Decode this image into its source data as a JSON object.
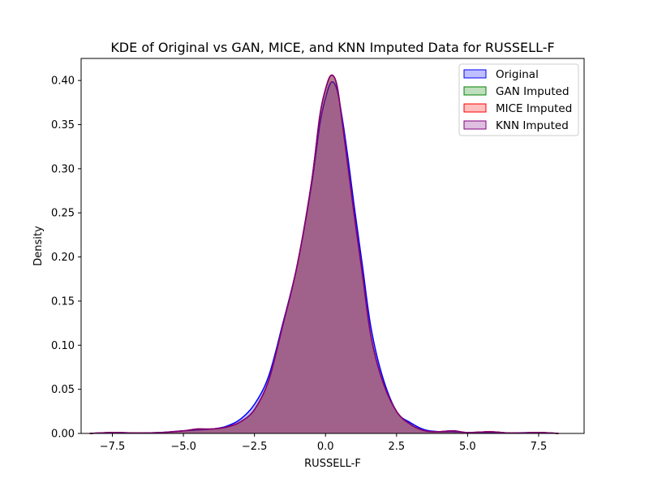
{
  "chart_data": {
    "type": "area",
    "title": "KDE of Original vs GAN, MICE, and KNN Imputed Data for RUSSELL-F",
    "xlabel": "RUSSELL-F",
    "ylabel": "Density",
    "xlim": [
      -8.6,
      9.1
    ],
    "ylim": [
      0,
      0.425
    ],
    "x_ticks": [
      -7.5,
      -5.0,
      -2.5,
      0.0,
      2.5,
      5.0,
      7.5
    ],
    "x_tick_labels": [
      "−7.5",
      "−5.0",
      "−2.5",
      "0.0",
      "2.5",
      "5.0",
      "7.5"
    ],
    "y_ticks": [
      0.0,
      0.05,
      0.1,
      0.15,
      0.2,
      0.25,
      0.3,
      0.35,
      0.4
    ],
    "y_tick_labels": [
      "0.00",
      "0.05",
      "0.10",
      "0.15",
      "0.20",
      "0.25",
      "0.30",
      "0.35",
      "0.40"
    ],
    "grid": false,
    "legend_position": "top-right",
    "series": [
      {
        "name": "Original",
        "color": "#0000ff",
        "fill_alpha": 0.25,
        "points": [
          [
            -8.3,
            0.0
          ],
          [
            -7.5,
            0.001
          ],
          [
            -6.5,
            0.0005
          ],
          [
            -5.8,
            0.001
          ],
          [
            -5.0,
            0.003
          ],
          [
            -4.5,
            0.004
          ],
          [
            -4.0,
            0.005
          ],
          [
            -3.5,
            0.008
          ],
          [
            -3.0,
            0.016
          ],
          [
            -2.5,
            0.033
          ],
          [
            -2.0,
            0.065
          ],
          [
            -1.5,
            0.125
          ],
          [
            -1.0,
            0.19
          ],
          [
            -0.5,
            0.28
          ],
          [
            -0.2,
            0.35
          ],
          [
            0.0,
            0.38
          ],
          [
            0.2,
            0.398
          ],
          [
            0.4,
            0.39
          ],
          [
            0.6,
            0.355
          ],
          [
            0.8,
            0.31
          ],
          [
            1.0,
            0.26
          ],
          [
            1.3,
            0.19
          ],
          [
            1.6,
            0.12
          ],
          [
            2.0,
            0.065
          ],
          [
            2.5,
            0.025
          ],
          [
            3.0,
            0.012
          ],
          [
            3.5,
            0.004
          ],
          [
            4.0,
            0.002
          ],
          [
            4.5,
            0.002
          ],
          [
            5.0,
            0.001
          ],
          [
            5.8,
            0.001
          ],
          [
            6.5,
            0.0005
          ],
          [
            7.5,
            0.001
          ],
          [
            8.2,
            0.0
          ]
        ]
      },
      {
        "name": "GAN Imputed",
        "color": "#008000",
        "fill_alpha": 0.25,
        "points": [
          [
            -8.3,
            0.0
          ],
          [
            -7.5,
            0.001
          ],
          [
            -6.5,
            0.0005
          ],
          [
            -5.8,
            0.001
          ],
          [
            -5.0,
            0.003
          ],
          [
            -4.5,
            0.005
          ],
          [
            -4.0,
            0.005
          ],
          [
            -3.5,
            0.007
          ],
          [
            -3.0,
            0.013
          ],
          [
            -2.5,
            0.027
          ],
          [
            -2.0,
            0.06
          ],
          [
            -1.5,
            0.123
          ],
          [
            -1.0,
            0.19
          ],
          [
            -0.5,
            0.283
          ],
          [
            -0.2,
            0.36
          ],
          [
            0.0,
            0.39
          ],
          [
            0.2,
            0.406
          ],
          [
            0.4,
            0.395
          ],
          [
            0.6,
            0.35
          ],
          [
            0.8,
            0.3
          ],
          [
            1.0,
            0.25
          ],
          [
            1.3,
            0.18
          ],
          [
            1.6,
            0.11
          ],
          [
            2.0,
            0.06
          ],
          [
            2.5,
            0.025
          ],
          [
            3.0,
            0.01
          ],
          [
            3.5,
            0.003
          ],
          [
            4.0,
            0.002
          ],
          [
            4.5,
            0.003
          ],
          [
            5.0,
            0.001
          ],
          [
            5.8,
            0.002
          ],
          [
            6.5,
            0.0005
          ],
          [
            7.5,
            0.001
          ],
          [
            8.2,
            0.0
          ]
        ]
      },
      {
        "name": "MICE Imputed",
        "color": "#ff0000",
        "fill_alpha": 0.25,
        "points": [
          [
            -8.3,
            0.0
          ],
          [
            -7.5,
            0.001
          ],
          [
            -6.5,
            0.0005
          ],
          [
            -5.8,
            0.001
          ],
          [
            -5.0,
            0.003
          ],
          [
            -4.5,
            0.005
          ],
          [
            -4.0,
            0.005
          ],
          [
            -3.5,
            0.007
          ],
          [
            -3.0,
            0.013
          ],
          [
            -2.5,
            0.027
          ],
          [
            -2.0,
            0.06
          ],
          [
            -1.5,
            0.123
          ],
          [
            -1.0,
            0.19
          ],
          [
            -0.5,
            0.283
          ],
          [
            -0.2,
            0.36
          ],
          [
            0.0,
            0.39
          ],
          [
            0.2,
            0.406
          ],
          [
            0.4,
            0.395
          ],
          [
            0.6,
            0.35
          ],
          [
            0.8,
            0.3
          ],
          [
            1.0,
            0.25
          ],
          [
            1.3,
            0.18
          ],
          [
            1.6,
            0.11
          ],
          [
            2.0,
            0.06
          ],
          [
            2.5,
            0.025
          ],
          [
            3.0,
            0.01
          ],
          [
            3.5,
            0.003
          ],
          [
            4.0,
            0.002
          ],
          [
            4.5,
            0.003
          ],
          [
            5.0,
            0.001
          ],
          [
            5.8,
            0.002
          ],
          [
            6.5,
            0.0005
          ],
          [
            7.5,
            0.001
          ],
          [
            8.2,
            0.0
          ]
        ]
      },
      {
        "name": "KNN Imputed",
        "color": "#800080",
        "fill_alpha": 0.25,
        "points": [
          [
            -8.3,
            0.0
          ],
          [
            -7.5,
            0.001
          ],
          [
            -6.5,
            0.0005
          ],
          [
            -5.8,
            0.001
          ],
          [
            -5.0,
            0.003
          ],
          [
            -4.5,
            0.005
          ],
          [
            -4.0,
            0.005
          ],
          [
            -3.5,
            0.007
          ],
          [
            -3.0,
            0.013
          ],
          [
            -2.5,
            0.027
          ],
          [
            -2.0,
            0.06
          ],
          [
            -1.5,
            0.123
          ],
          [
            -1.0,
            0.19
          ],
          [
            -0.5,
            0.283
          ],
          [
            -0.2,
            0.36
          ],
          [
            0.0,
            0.39
          ],
          [
            0.2,
            0.406
          ],
          [
            0.4,
            0.395
          ],
          [
            0.6,
            0.35
          ],
          [
            0.8,
            0.3
          ],
          [
            1.0,
            0.25
          ],
          [
            1.3,
            0.18
          ],
          [
            1.6,
            0.11
          ],
          [
            2.0,
            0.06
          ],
          [
            2.5,
            0.025
          ],
          [
            3.0,
            0.01
          ],
          [
            3.5,
            0.003
          ],
          [
            4.0,
            0.002
          ],
          [
            4.5,
            0.003
          ],
          [
            5.0,
            0.001
          ],
          [
            5.8,
            0.002
          ],
          [
            6.5,
            0.0005
          ],
          [
            7.5,
            0.001
          ],
          [
            8.2,
            0.0
          ]
        ]
      }
    ]
  }
}
